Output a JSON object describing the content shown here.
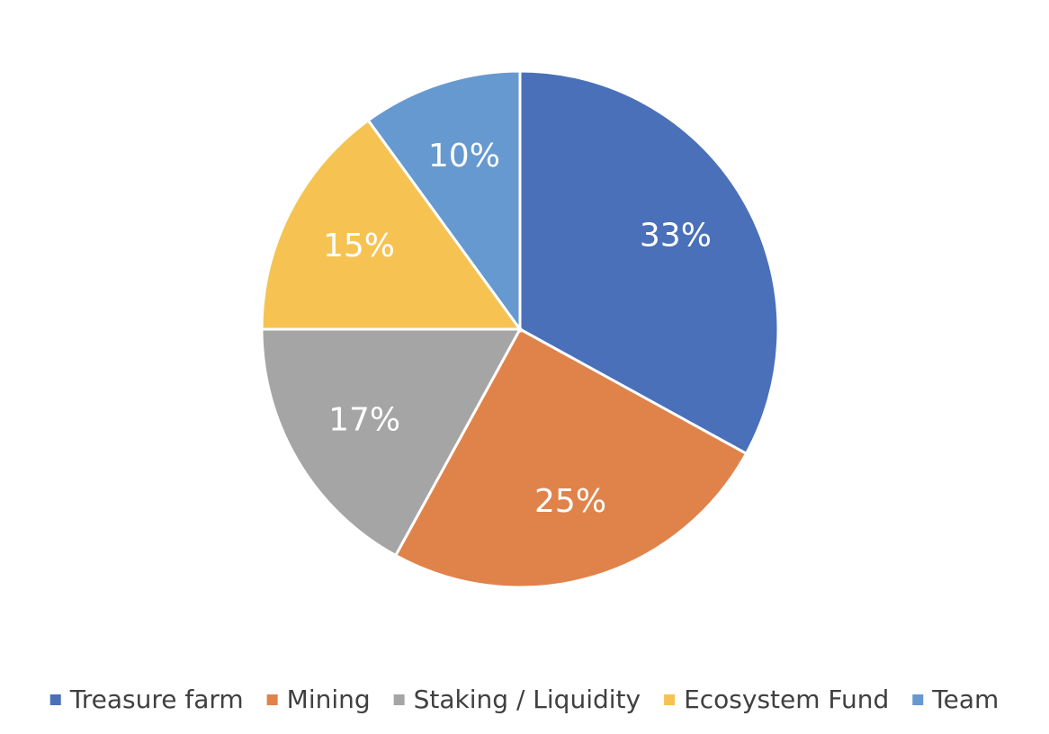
{
  "chart_data": {
    "type": "pie",
    "categories": [
      "Treasure farm",
      "Mining",
      "Staking / Liquidity",
      "Ecosystem Fund",
      "Team"
    ],
    "values": [
      33,
      25,
      17,
      15,
      10
    ],
    "value_labels": [
      "33%",
      "25%",
      "17%",
      "15%",
      "10%"
    ],
    "colors": [
      "#4a70b9",
      "#e0834a",
      "#a5a5a5",
      "#f6c352",
      "#6699cf"
    ],
    "legend": "bottom"
  }
}
